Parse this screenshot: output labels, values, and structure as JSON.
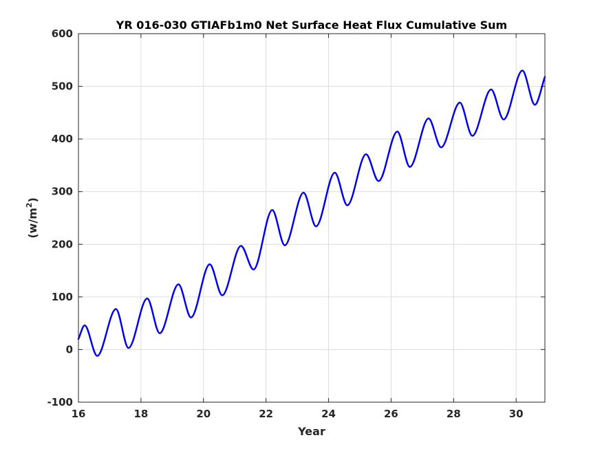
{
  "chart_data": {
    "type": "line",
    "title": "YR 016-030 GTIAFb1m0 Net Surface Heat Flux  Cumulative Sum",
    "xlabel": "Year",
    "ylabel_base": "(w/m",
    "ylabel_sup": "2",
    "ylabel_close": ")",
    "xlim": [
      16,
      30.92
    ],
    "ylim": [
      -100,
      600
    ],
    "xticks": [
      16,
      18,
      20,
      22,
      24,
      26,
      28,
      30
    ],
    "yticks": [
      -100,
      0,
      100,
      200,
      300,
      400,
      500,
      600
    ],
    "grid": true,
    "line_color": "#0000ee",
    "series": [
      {
        "x": [
          16.0,
          16.2,
          16.6,
          17.2,
          17.6,
          18.2,
          18.6,
          19.2,
          19.6,
          20.2,
          20.6,
          21.2,
          21.6,
          22.2,
          22.6,
          23.2,
          23.6,
          24.2,
          24.6,
          25.2,
          25.6,
          26.2,
          26.6,
          27.2,
          27.6,
          28.2,
          28.6,
          29.2,
          29.6,
          30.2,
          30.6,
          30.92
        ],
        "values": [
          20,
          46,
          -12,
          77,
          3,
          97,
          31,
          124,
          61,
          162,
          103,
          197,
          152,
          265,
          198,
          298,
          234,
          336,
          274,
          371,
          320,
          414,
          347,
          439,
          384,
          469,
          406,
          494,
          437,
          530,
          465,
          518
        ]
      }
    ]
  }
}
